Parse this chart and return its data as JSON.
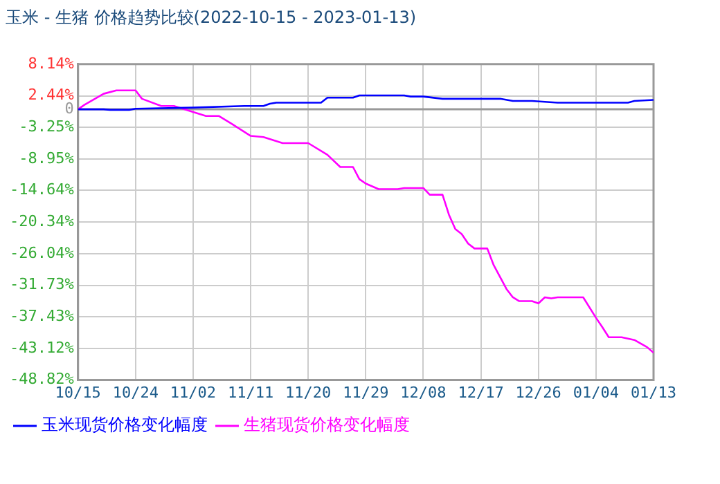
{
  "chart_data": {
    "type": "line",
    "title": "玉米 - 生猪 价格趋势比较(2022-10-15 - 2023-01-13)",
    "series": [
      {
        "name": "玉米现货价格变化幅度",
        "color": "#0000ff",
        "x": [
          "2022-10-15",
          "2022-10-19",
          "2022-10-20",
          "2022-10-23",
          "2022-10-24",
          "2022-11-02",
          "2022-11-10",
          "2022-11-13",
          "2022-11-14",
          "2022-11-15",
          "2022-11-22",
          "2022-11-23",
          "2022-11-27",
          "2022-11-28",
          "2022-12-05",
          "2022-12-06",
          "2022-12-08",
          "2022-12-11",
          "2022-12-20",
          "2022-12-22",
          "2022-12-25",
          "2022-12-29",
          "2023-01-09",
          "2023-01-10",
          "2023-01-13"
        ],
        "values": [
          0,
          0,
          -0.1,
          -0.1,
          0.1,
          0.3,
          0.6,
          0.6,
          1.0,
          1.2,
          1.2,
          2.1,
          2.1,
          2.5,
          2.5,
          2.3,
          2.3,
          1.9,
          1.9,
          1.5,
          1.5,
          1.2,
          1.2,
          1.5,
          1.7
        ]
      },
      {
        "name": "生猪现货价格变化幅度",
        "color": "#ff00ff",
        "x": [
          "2022-10-15",
          "2022-10-16",
          "2022-10-19",
          "2022-10-21",
          "2022-10-24",
          "2022-10-25",
          "2022-10-28",
          "2022-10-30",
          "2022-11-02",
          "2022-11-04",
          "2022-11-06",
          "2022-11-08",
          "2022-11-11",
          "2022-11-13",
          "2022-11-16",
          "2022-11-20",
          "2022-11-23",
          "2022-11-25",
          "2022-11-27",
          "2022-11-28",
          "2022-11-29",
          "2022-12-01",
          "2022-12-04",
          "2022-12-05",
          "2022-12-08",
          "2022-12-09",
          "2022-12-11",
          "2022-12-12",
          "2022-12-13",
          "2022-12-14",
          "2022-12-15",
          "2022-12-16",
          "2022-12-18",
          "2022-12-19",
          "2022-12-21",
          "2022-12-22",
          "2022-12-23",
          "2022-12-25",
          "2022-12-26",
          "2022-12-27",
          "2022-12-28",
          "2022-12-29",
          "2023-01-02",
          "2023-01-04",
          "2023-01-05",
          "2023-01-06",
          "2023-01-08",
          "2023-01-10",
          "2023-01-12",
          "2023-01-13"
        ],
        "values": [
          0,
          0.8,
          2.8,
          3.4,
          3.4,
          1.9,
          0.6,
          0.6,
          -0.5,
          -1.2,
          -1.2,
          -2.6,
          -4.8,
          -5.0,
          -6.1,
          -6.1,
          -8.2,
          -10.4,
          -10.4,
          -12.6,
          -13.4,
          -14.4,
          -14.4,
          -14.2,
          -14.2,
          -15.4,
          -15.4,
          -19.0,
          -21.6,
          -22.5,
          -24.2,
          -25.1,
          -25.1,
          -28.1,
          -32.4,
          -33.9,
          -34.6,
          -34.6,
          -35.0,
          -33.9,
          -34.1,
          -33.9,
          -33.9,
          -37.6,
          -39.3,
          -41.1,
          -41.1,
          -41.6,
          -42.9,
          -43.9
        ]
      }
    ],
    "xlim": [
      "2022-10-15",
      "2023-01-13"
    ],
    "xticks": [
      {
        "value": "2022-10-15",
        "label": "10/15"
      },
      {
        "value": "2022-10-24",
        "label": "10/24"
      },
      {
        "value": "2022-11-02",
        "label": "11/02"
      },
      {
        "value": "2022-11-11",
        "label": "11/11"
      },
      {
        "value": "2022-11-20",
        "label": "11/20"
      },
      {
        "value": "2022-11-29",
        "label": "11/29"
      },
      {
        "value": "2022-12-08",
        "label": "12/08"
      },
      {
        "value": "2022-12-17",
        "label": "12/17"
      },
      {
        "value": "2022-12-26",
        "label": "12/26"
      },
      {
        "value": "2023-01-04",
        "label": "01/04"
      },
      {
        "value": "2023-01-13",
        "label": "01/13"
      }
    ],
    "ylim": [
      -48.82,
      8.14
    ],
    "yticks": [
      {
        "value": 8.14,
        "label": "8.14%"
      },
      {
        "value": 2.44,
        "label": "2.44%"
      },
      0,
      {
        "value": -3.25,
        "label": "-3.25%"
      },
      {
        "value": -8.95,
        "label": "-8.95%"
      },
      {
        "value": -14.64,
        "label": "-14.64%"
      },
      {
        "value": -20.34,
        "label": "-20.34%"
      },
      {
        "value": -26.04,
        "label": "-26.04%"
      },
      {
        "value": -31.73,
        "label": "-31.73%"
      },
      {
        "value": -37.43,
        "label": "-37.43%"
      },
      {
        "value": -43.12,
        "label": "-43.12%"
      },
      {
        "value": -48.82,
        "label": "-48.82%"
      }
    ],
    "ref_lines": [
      {
        "axis": "y",
        "value": 0,
        "color": "#999999"
      }
    ],
    "grid": true,
    "legend": "bottom",
    "marker": "none",
    "line_style": "solid"
  }
}
